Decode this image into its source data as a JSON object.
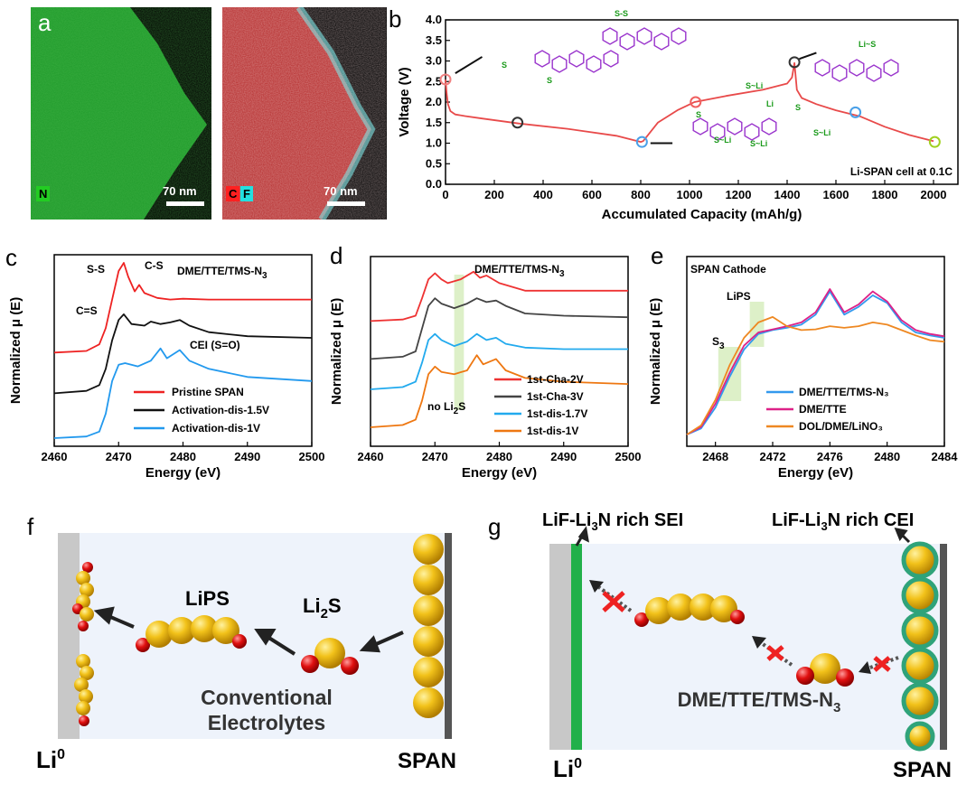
{
  "panels": {
    "a": {
      "letter": "a",
      "left_map": {
        "element_label": "N",
        "label_color": "#22cc22",
        "scalebar": "70 nm"
      },
      "right_map": {
        "element_labels": [
          {
            "text": "C",
            "color": "#ff2020"
          },
          {
            "text": "F",
            "color": "#22e0e0"
          }
        ],
        "scalebar": "70 nm"
      }
    },
    "b": {
      "letter": "b",
      "annotation": "Li-SPAN cell at 0.1C",
      "molecule_labels": [
        "S",
        "S",
        "S-S",
        "Li~S",
        "S~Li",
        "S",
        "S~Li",
        "S~Li",
        "Li",
        "S",
        "S~Li"
      ]
    },
    "c": {
      "letter": "c",
      "title_html": "DME/TTE/TMS-N",
      "title_sub": "3",
      "annotations": [
        "S-S",
        "C-S",
        "C=S",
        "CEI (S=O)"
      ]
    },
    "d": {
      "letter": "d",
      "title_html": "DME/TTE/TMS-N",
      "title_sub": "3",
      "annotation_main": "no Li",
      "annotation_sub": "2",
      "annotation_tail": "S"
    },
    "e": {
      "letter": "e",
      "title": "SPAN Cathode",
      "annotations": [
        "LiPS",
        "S"
      ],
      "s3_sub": "3"
    },
    "f": {
      "letter": "f",
      "left_label": "Li",
      "left_sup": "0",
      "right_label": "SPAN",
      "lips_label": "LiPS",
      "li2s_main": "Li",
      "li2s_sub": "2",
      "li2s_tail": "S",
      "text_line1": "Conventional",
      "text_line2": "Electrolytes"
    },
    "g": {
      "letter": "g",
      "sei_label_main": "LiF-Li",
      "sei_sub": "3",
      "sei_label_tail": "N rich SEI",
      "cei_label_main": "LiF-Li",
      "cei_sub": "3",
      "cei_label_tail": "N rich CEI",
      "left_label": "Li",
      "left_sup": "0",
      "right_label": "SPAN",
      "electrolyte_main": "DME/TTE/TMS-N",
      "electrolyte_sub": "3"
    }
  },
  "chart_data": [
    {
      "panel": "b",
      "type": "line",
      "xlabel": "Accumulated Capacity (mAh/g)",
      "ylabel": "Voltage (V)",
      "xlim": [
        0,
        2100
      ],
      "ylim": [
        0,
        4.0
      ],
      "xticks": [
        0,
        200,
        400,
        600,
        800,
        1000,
        1200,
        1400,
        1600,
        1800,
        2000
      ],
      "yticks": [
        0.0,
        0.5,
        1.0,
        1.5,
        2.0,
        2.5,
        3.0,
        3.5,
        4.0
      ],
      "series": [
        {
          "color": "#e84a4a",
          "x": [
            0,
            5,
            10,
            20,
            40,
            80,
            150,
            300,
            500,
            700,
            800,
            810,
            830,
            870,
            950,
            1020,
            1150,
            1300,
            1400,
            1420,
            1430,
            1440,
            1460,
            1520,
            1600,
            1700,
            1800,
            1900,
            2000
          ],
          "y": [
            2.55,
            2.2,
            1.95,
            1.78,
            1.7,
            1.66,
            1.6,
            1.48,
            1.35,
            1.18,
            1.03,
            1.05,
            1.2,
            1.5,
            1.8,
            2.0,
            2.15,
            2.3,
            2.45,
            2.6,
            2.95,
            2.3,
            2.1,
            1.95,
            1.8,
            1.65,
            1.4,
            1.2,
            1.05
          ]
        }
      ],
      "markers": [
        {
          "x": 0,
          "y": 2.55,
          "color": "#f08080"
        },
        {
          "x": 295,
          "y": 1.5,
          "color": "#333333"
        },
        {
          "x": 805,
          "y": 1.03,
          "color": "#4aa0e8"
        },
        {
          "x": 1025,
          "y": 2.0,
          "color": "#f06060"
        },
        {
          "x": 1430,
          "y": 2.97,
          "color": "#333333"
        },
        {
          "x": 1680,
          "y": 1.75,
          "color": "#4aa0e8"
        },
        {
          "x": 2005,
          "y": 1.03,
          "color": "#a0d020"
        }
      ]
    },
    {
      "panel": "c",
      "type": "line",
      "xlabel": "Energy (eV)",
      "ylabel": "Normalized μ (E)",
      "xlim": [
        2460,
        2500
      ],
      "xticks": [
        2460,
        2470,
        2480,
        2490,
        2500
      ],
      "series": [
        {
          "name": "Pristine SPAN",
          "color": "#ee2222",
          "x": [
            2460,
            2465,
            2467,
            2468,
            2469,
            2470,
            2470.8,
            2471.5,
            2472.5,
            2473.2,
            2474,
            2476,
            2478,
            2480,
            2484,
            2490,
            2500
          ],
          "y": [
            0.95,
            0.97,
            1.05,
            1.25,
            1.6,
            1.95,
            2.05,
            1.88,
            1.7,
            1.78,
            1.68,
            1.62,
            1.6,
            1.61,
            1.6,
            1.6,
            1.6
          ]
        },
        {
          "name": "Activation-dis-1.5V",
          "color": "#111111",
          "x": [
            2460,
            2465,
            2467,
            2468,
            2469,
            2470,
            2470.8,
            2472,
            2474,
            2475,
            2476.5,
            2478,
            2479.5,
            2481,
            2484,
            2490,
            2500
          ],
          "y": [
            0.45,
            0.48,
            0.55,
            0.75,
            1.1,
            1.35,
            1.42,
            1.3,
            1.28,
            1.33,
            1.3,
            1.32,
            1.35,
            1.28,
            1.2,
            1.15,
            1.13
          ]
        },
        {
          "name": "Activation-dis-1V",
          "color": "#2299ee",
          "x": [
            2460,
            2465,
            2467,
            2468,
            2469,
            2470,
            2471,
            2473,
            2475,
            2476.5,
            2477.5,
            2479.5,
            2481,
            2484,
            2490,
            2500
          ],
          "y": [
            -0.1,
            -0.08,
            -0.02,
            0.2,
            0.6,
            0.8,
            0.82,
            0.78,
            0.85,
            1.0,
            0.88,
            0.98,
            0.85,
            0.75,
            0.65,
            0.6
          ]
        }
      ]
    },
    {
      "panel": "d",
      "type": "line",
      "xlabel": "Energy (eV)",
      "ylabel": "Normalized μ (E)",
      "xlim": [
        2460,
        2500
      ],
      "xticks": [
        2460,
        2470,
        2480,
        2490,
        2500
      ],
      "series": [
        {
          "name": "1st-Cha-2V",
          "color": "#ee3333",
          "x": [
            2460,
            2465,
            2467,
            2468,
            2469,
            2470,
            2471,
            2472,
            2474,
            2476,
            2477,
            2478,
            2480,
            2484,
            2490,
            2500
          ],
          "y": [
            1.55,
            1.57,
            1.62,
            1.85,
            2.1,
            2.18,
            2.1,
            2.05,
            2.1,
            2.2,
            2.12,
            2.15,
            2.05,
            1.95,
            1.95,
            1.95
          ]
        },
        {
          "name": "1st-Cha-3V",
          "color": "#444444",
          "x": [
            2460,
            2465,
            2467,
            2468,
            2469,
            2470,
            2471,
            2473,
            2475,
            2476.5,
            2478,
            2479.5,
            2481,
            2484,
            2490,
            2500
          ],
          "y": [
            1.05,
            1.08,
            1.15,
            1.45,
            1.75,
            1.85,
            1.78,
            1.72,
            1.78,
            1.85,
            1.8,
            1.82,
            1.75,
            1.65,
            1.62,
            1.6
          ]
        },
        {
          "name": "1st-dis-1.7V",
          "color": "#22aaee",
          "x": [
            2460,
            2465,
            2467,
            2468,
            2469,
            2470,
            2471,
            2473,
            2475,
            2476.5,
            2478,
            2479.5,
            2481,
            2484,
            2490,
            2500
          ],
          "y": [
            0.65,
            0.68,
            0.75,
            1.0,
            1.3,
            1.38,
            1.3,
            1.22,
            1.28,
            1.38,
            1.3,
            1.33,
            1.25,
            1.2,
            1.18,
            1.18
          ]
        },
        {
          "name": "1st-dis-1V",
          "color": "#ee7711",
          "x": [
            2460,
            2465,
            2467,
            2468,
            2469,
            2470,
            2471,
            2473,
            2475,
            2476.5,
            2477.5,
            2479.5,
            2481,
            2484,
            2490,
            2500
          ],
          "y": [
            0.15,
            0.18,
            0.25,
            0.5,
            0.85,
            0.95,
            0.88,
            0.85,
            0.9,
            1.1,
            0.98,
            1.05,
            0.9,
            0.8,
            0.75,
            0.72
          ]
        }
      ],
      "highlight_band": [
        2473,
        2474.5
      ]
    },
    {
      "panel": "e",
      "type": "line",
      "xlabel": "Energy (eV)",
      "ylabel": "Normalized μ (E)",
      "xlim": [
        2466,
        2484
      ],
      "xticks": [
        2468,
        2472,
        2476,
        2480,
        2484
      ],
      "series": [
        {
          "name": "DME/TTE/TMS-N₃",
          "color": "#3399ee",
          "x": [
            2466,
            2467,
            2468,
            2469,
            2470,
            2471,
            2472,
            2473,
            2474,
            2475,
            2476,
            2477,
            2478,
            2479,
            2480,
            2481,
            2482,
            2483,
            2484
          ],
          "y": [
            0.0,
            0.08,
            0.35,
            0.75,
            1.1,
            1.3,
            1.35,
            1.38,
            1.42,
            1.55,
            1.85,
            1.55,
            1.65,
            1.8,
            1.7,
            1.45,
            1.32,
            1.28,
            1.25
          ]
        },
        {
          "name": "DME/TTE",
          "color": "#dd2288",
          "x": [
            2466,
            2467,
            2468,
            2469,
            2470,
            2471,
            2472,
            2473,
            2474,
            2475,
            2476,
            2477,
            2478,
            2479,
            2480,
            2481,
            2482,
            2483,
            2484
          ],
          "y": [
            0.0,
            0.1,
            0.4,
            0.8,
            1.15,
            1.32,
            1.36,
            1.4,
            1.45,
            1.58,
            1.88,
            1.58,
            1.68,
            1.85,
            1.72,
            1.48,
            1.35,
            1.3,
            1.27
          ]
        },
        {
          "name": "DOL/DME/LiNO₃",
          "color": "#ee8822",
          "x": [
            2466,
            2467,
            2468,
            2469,
            2470,
            2471,
            2472,
            2473,
            2474,
            2475,
            2476,
            2477,
            2478,
            2479,
            2480,
            2481,
            2482,
            2483,
            2484
          ],
          "y": [
            0.0,
            0.12,
            0.45,
            0.9,
            1.25,
            1.45,
            1.52,
            1.4,
            1.35,
            1.36,
            1.4,
            1.38,
            1.4,
            1.45,
            1.42,
            1.35,
            1.28,
            1.22,
            1.2
          ]
        }
      ],
      "highlight_bands": [
        [
          2468.2,
          2469.8
        ],
        [
          2470.4,
          2471.4
        ]
      ]
    }
  ]
}
